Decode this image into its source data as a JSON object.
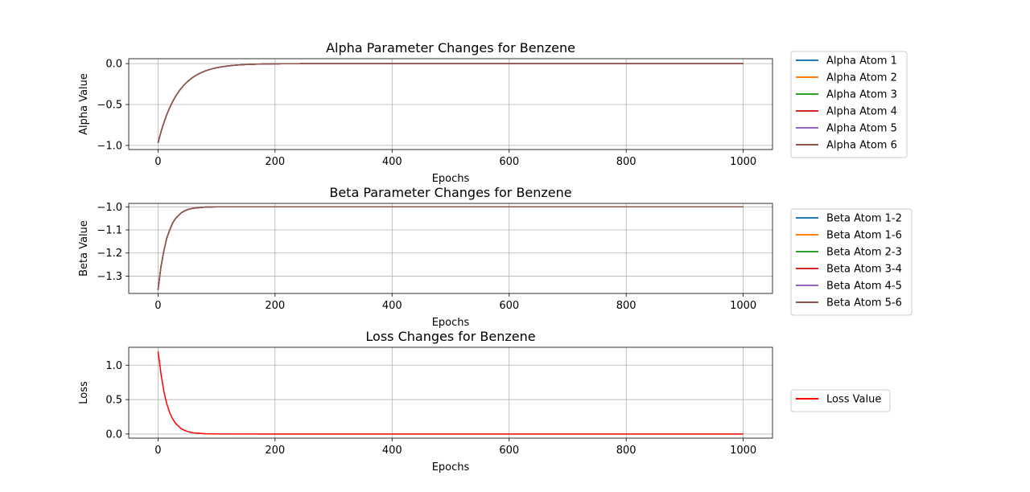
{
  "chart_data": [
    {
      "type": "line",
      "title": "Alpha Parameter Changes for Benzene",
      "xlabel": "Epochs",
      "ylabel": "Alpha Value",
      "xlim": [
        -50,
        1050
      ],
      "ylim": [
        -1.05,
        0.06
      ],
      "xticks": [
        0,
        200,
        400,
        600,
        800,
        1000
      ],
      "yticks": [
        0.0,
        -0.5,
        -1.0
      ],
      "ytick_labels": [
        "0.0",
        "−0.5",
        "−1.0"
      ],
      "grid": true,
      "legend": "outside-right",
      "decay": "exponential",
      "x": [
        0,
        10,
        20,
        30,
        40,
        50,
        60,
        80,
        100,
        120,
        150,
        200,
        300,
        400,
        600,
        800,
        1000
      ],
      "series": [
        {
          "name": "Alpha Atom 1",
          "color": "#1f77b4",
          "values": [
            -0.97,
            -0.73,
            -0.55,
            -0.41,
            -0.31,
            -0.23,
            -0.17,
            -0.1,
            -0.055,
            -0.031,
            -0.013,
            -0.003,
            0.0,
            0.0,
            0.0,
            0.0,
            0.0
          ]
        },
        {
          "name": "Alpha Atom 2",
          "color": "#ff7f0e",
          "values": [
            -0.97,
            -0.73,
            -0.55,
            -0.41,
            -0.31,
            -0.23,
            -0.17,
            -0.1,
            -0.055,
            -0.031,
            -0.013,
            -0.003,
            0.0,
            0.0,
            0.0,
            0.0,
            0.0
          ]
        },
        {
          "name": "Alpha Atom 3",
          "color": "#2ca02c",
          "values": [
            -0.97,
            -0.73,
            -0.55,
            -0.41,
            -0.31,
            -0.23,
            -0.17,
            -0.1,
            -0.055,
            -0.031,
            -0.013,
            -0.003,
            0.0,
            0.0,
            0.0,
            0.0,
            0.0
          ]
        },
        {
          "name": "Alpha Atom 4",
          "color": "#d62728",
          "values": [
            -0.97,
            -0.73,
            -0.55,
            -0.41,
            -0.31,
            -0.23,
            -0.17,
            -0.1,
            -0.055,
            -0.031,
            -0.013,
            -0.003,
            0.0,
            0.0,
            0.0,
            0.0,
            0.0
          ]
        },
        {
          "name": "Alpha Atom 5",
          "color": "#9467bd",
          "values": [
            -0.97,
            -0.73,
            -0.55,
            -0.41,
            -0.31,
            -0.23,
            -0.17,
            -0.1,
            -0.055,
            -0.031,
            -0.013,
            -0.003,
            0.0,
            0.0,
            0.0,
            0.0,
            0.0
          ]
        },
        {
          "name": "Alpha Atom 6",
          "color": "#8c564b",
          "values": [
            -0.97,
            -0.73,
            -0.55,
            -0.41,
            -0.31,
            -0.23,
            -0.17,
            -0.1,
            -0.055,
            -0.031,
            -0.013,
            -0.003,
            0.0,
            0.0,
            0.0,
            0.0,
            0.0
          ]
        }
      ]
    },
    {
      "type": "line",
      "title": "Beta Parameter Changes for Benzene",
      "xlabel": "Epochs",
      "ylabel": "Beta Value",
      "xlim": [
        -50,
        1050
      ],
      "ylim": [
        -1.375,
        -0.985
      ],
      "xticks": [
        0,
        200,
        400,
        600,
        800,
        1000
      ],
      "yticks": [
        -1.0,
        -1.1,
        -1.2,
        -1.3
      ],
      "ytick_labels": [
        "−1.0",
        "−1.1",
        "−1.2",
        "−1.3"
      ],
      "grid": true,
      "legend": "outside-right",
      "x": [
        0,
        5,
        10,
        15,
        20,
        25,
        30,
        40,
        50,
        60,
        80,
        100,
        200,
        400,
        600,
        800,
        1000
      ],
      "series": [
        {
          "name": "Beta Atom 1-2",
          "color": "#1f77b4",
          "values": [
            -1.36,
            -1.26,
            -1.19,
            -1.135,
            -1.1,
            -1.07,
            -1.05,
            -1.025,
            -1.012,
            -1.006,
            -1.001,
            -1.0,
            -1.0,
            -1.0,
            -1.0,
            -1.0,
            -1.0
          ]
        },
        {
          "name": "Beta Atom 1-6",
          "color": "#ff7f0e",
          "values": [
            -1.36,
            -1.26,
            -1.19,
            -1.135,
            -1.1,
            -1.07,
            -1.05,
            -1.025,
            -1.012,
            -1.006,
            -1.001,
            -1.0,
            -1.0,
            -1.0,
            -1.0,
            -1.0,
            -1.0
          ]
        },
        {
          "name": "Beta Atom 2-3",
          "color": "#2ca02c",
          "values": [
            -1.36,
            -1.26,
            -1.19,
            -1.135,
            -1.1,
            -1.07,
            -1.05,
            -1.025,
            -1.012,
            -1.006,
            -1.001,
            -1.0,
            -1.0,
            -1.0,
            -1.0,
            -1.0,
            -1.0
          ]
        },
        {
          "name": "Beta Atom 3-4",
          "color": "#d62728",
          "values": [
            -1.36,
            -1.26,
            -1.19,
            -1.135,
            -1.1,
            -1.07,
            -1.05,
            -1.025,
            -1.012,
            -1.006,
            -1.001,
            -1.0,
            -1.0,
            -1.0,
            -1.0,
            -1.0,
            -1.0
          ]
        },
        {
          "name": "Beta Atom 4-5",
          "color": "#9467bd",
          "values": [
            -1.36,
            -1.26,
            -1.19,
            -1.135,
            -1.1,
            -1.07,
            -1.05,
            -1.025,
            -1.012,
            -1.006,
            -1.001,
            -1.0,
            -1.0,
            -1.0,
            -1.0,
            -1.0,
            -1.0
          ]
        },
        {
          "name": "Beta Atom 5-6",
          "color": "#8c564b",
          "values": [
            -1.36,
            -1.26,
            -1.19,
            -1.135,
            -1.1,
            -1.07,
            -1.05,
            -1.025,
            -1.012,
            -1.006,
            -1.001,
            -1.0,
            -1.0,
            -1.0,
            -1.0,
            -1.0,
            -1.0
          ]
        }
      ]
    },
    {
      "type": "line",
      "title": "Loss Changes for Benzene",
      "xlabel": "Epochs",
      "ylabel": "Loss",
      "xlim": [
        -50,
        1050
      ],
      "ylim": [
        -0.06,
        1.26
      ],
      "xticks": [
        0,
        200,
        400,
        600,
        800,
        1000
      ],
      "yticks": [
        0.0,
        0.5,
        1.0
      ],
      "ytick_labels": [
        "0.0",
        "0.5",
        "1.0"
      ],
      "grid": true,
      "legend": "outside-right",
      "x": [
        0,
        2,
        5,
        10,
        15,
        20,
        25,
        30,
        40,
        50,
        60,
        80,
        100,
        200,
        400,
        600,
        800,
        1000
      ],
      "series": [
        {
          "name": "Loss Value",
          "color": "#ff0000",
          "values": [
            1.2,
            1.08,
            0.88,
            0.62,
            0.44,
            0.31,
            0.22,
            0.155,
            0.075,
            0.037,
            0.018,
            0.005,
            0.001,
            0.0,
            0.0,
            0.0,
            0.0,
            0.0
          ]
        }
      ]
    }
  ]
}
